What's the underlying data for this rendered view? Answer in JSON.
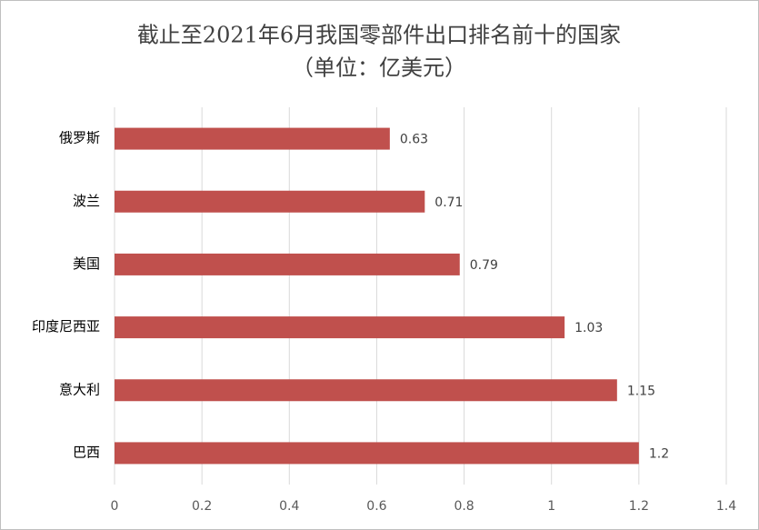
{
  "chart_data": {
    "type": "bar",
    "orientation": "horizontal",
    "title": "截止至2021年6月我国零部件出口排名前十的国家",
    "subtitle": "（单位：亿美元）",
    "categories": [
      "俄罗斯",
      "波兰",
      "美国",
      "印度尼西亚",
      "意大利",
      "巴西"
    ],
    "values": [
      0.63,
      0.71,
      0.79,
      1.03,
      1.15,
      1.2
    ],
    "color": "#c0504d",
    "xlim": [
      0,
      1.4
    ],
    "xticks": [
      0,
      0.2,
      0.4,
      0.6,
      0.8,
      1,
      1.2,
      1.4
    ],
    "grid": true,
    "data_labels": true
  }
}
